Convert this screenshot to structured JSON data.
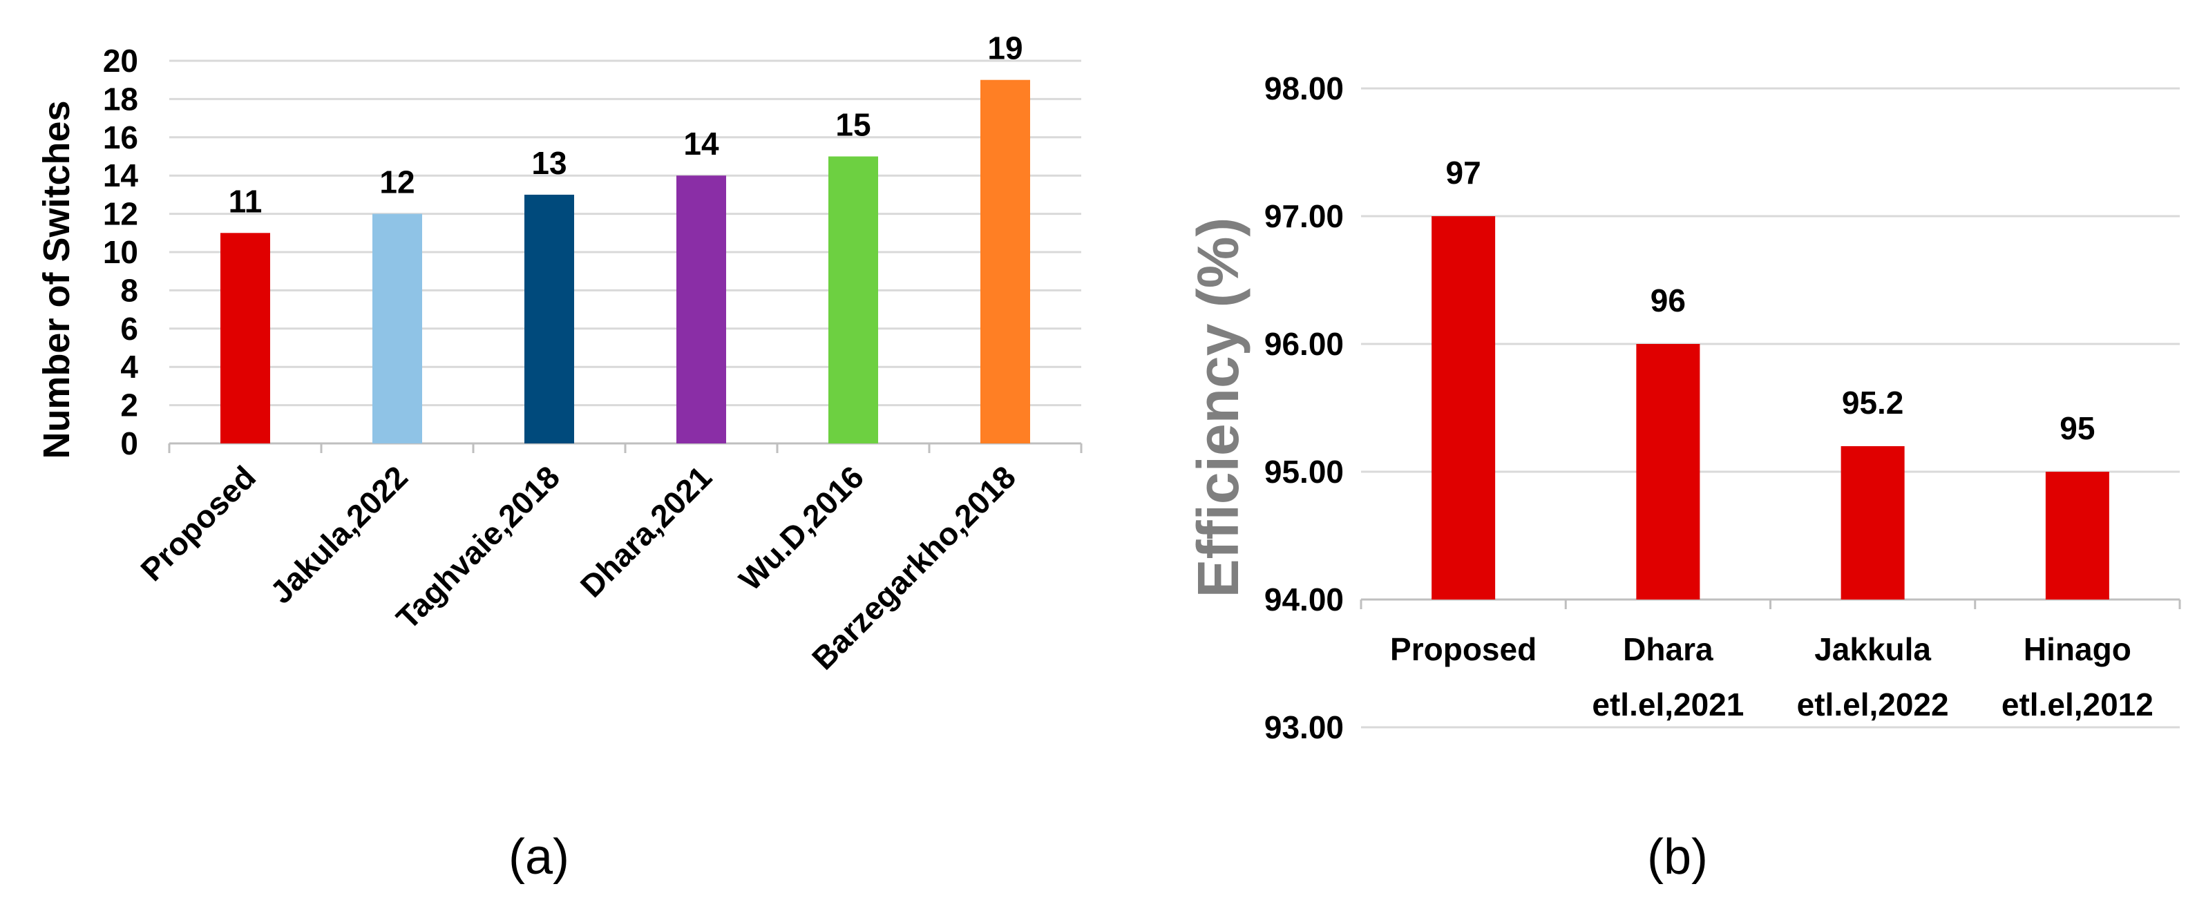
{
  "chart_data": [
    {
      "type": "bar",
      "panel_label": "(a)",
      "ylabel": "Number of Switches",
      "xlabel": "",
      "ylim": [
        0,
        20
      ],
      "yticks": [
        0,
        2,
        4,
        6,
        8,
        10,
        12,
        14,
        16,
        18,
        20
      ],
      "categories": [
        "Proposed",
        "Jakula,2022",
        "Taghvaie,2018",
        "Dhara,2021",
        "Wu.D,2016",
        "Barzegarkho,2018"
      ],
      "values": [
        11,
        12,
        13,
        14,
        15,
        19
      ],
      "bar_colors": [
        "#e00000",
        "#8fc3e6",
        "#004a7c",
        "#8a2ea6",
        "#6dd041",
        "#ff7f24"
      ],
      "data_labels": true,
      "grid": true,
      "legend": "none"
    },
    {
      "type": "bar",
      "panel_label": "(b)",
      "ylabel": "Efficiency (%)",
      "xlabel": "",
      "ylim": [
        93,
        98
      ],
      "yticks": [
        93,
        94,
        95,
        96,
        97,
        98
      ],
      "ytick_labels": [
        "93.00",
        "94.00",
        "95.00",
        "96.00",
        "97.00",
        "98.00"
      ],
      "categories": [
        [
          "Proposed"
        ],
        [
          "Dhara",
          "etl.el,2021"
        ],
        [
          "Jakkula",
          "etl.el,2022"
        ],
        [
          "Hinago",
          "etl.el,2012"
        ]
      ],
      "values": [
        97,
        96,
        95.2,
        95
      ],
      "bar_colors": [
        "#e00000",
        "#e00000",
        "#e00000",
        "#e00000"
      ],
      "data_labels": true,
      "grid": true,
      "legend": "none"
    }
  ]
}
